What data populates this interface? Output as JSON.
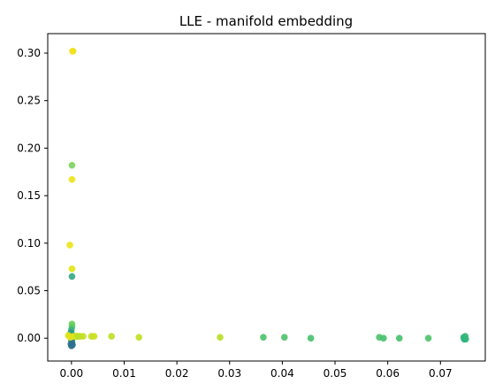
{
  "chart_data": {
    "type": "scatter",
    "title": "LLE - manifold embedding",
    "xlabel": "",
    "ylabel": "",
    "xlim": [
      -0.0045,
      0.0785
    ],
    "ylim": [
      -0.024,
      0.3205
    ],
    "x_ticks": [
      0.0,
      0.01,
      0.02,
      0.03,
      0.04,
      0.05,
      0.06,
      0.07
    ],
    "x_tick_labels": [
      "0.00",
      "0.01",
      "0.02",
      "0.03",
      "0.04",
      "0.05",
      "0.06",
      "0.07"
    ],
    "y_ticks": [
      0.0,
      0.05,
      0.1,
      0.15,
      0.2,
      0.25,
      0.3
    ],
    "y_tick_labels": [
      "0.00",
      "0.05",
      "0.10",
      "0.15",
      "0.20",
      "0.25",
      "0.30"
    ],
    "grid": false,
    "legend": false,
    "colormap": "viridis",
    "marker_size": 3.8,
    "points": [
      {
        "x": 0.0002,
        "y": 0.302,
        "color": "#f2e11f"
      },
      {
        "x": 0.0003,
        "y": 0.302,
        "color": "#f2e11f"
      },
      {
        "x": 0.0001,
        "y": 0.182,
        "color": "#7ed25e"
      },
      {
        "x": 0.0001,
        "y": 0.167,
        "color": "#ece51b"
      },
      {
        "x": -0.0003,
        "y": 0.098,
        "color": "#ece51b"
      },
      {
        "x": 0.0001,
        "y": 0.073,
        "color": "#e2e418"
      },
      {
        "x": 0.0001,
        "y": 0.065,
        "color": "#3aa884"
      },
      {
        "x": 0.0001,
        "y": 0.015,
        "color": "#6fcf5a"
      },
      {
        "x": 0.0001,
        "y": 0.012,
        "color": "#5ec962"
      },
      {
        "x": 0.0,
        "y": 0.009,
        "color": "#3cb47c"
      },
      {
        "x": -0.0001,
        "y": 0.006,
        "color": "#2a9d8a"
      },
      {
        "x": 0.0001,
        "y": 0.004,
        "color": "#2a9d8a"
      },
      {
        "x": -0.0002,
        "y": 0.002,
        "color": "#2a9d8a"
      },
      {
        "x": 0.0002,
        "y": 0.0,
        "color": "#2a9d8a"
      },
      {
        "x": 0.0,
        "y": -0.002,
        "color": "#26848e"
      },
      {
        "x": 0.0001,
        "y": -0.004,
        "color": "#26848e"
      },
      {
        "x": -0.0001,
        "y": -0.006,
        "color": "#2e6f8e"
      },
      {
        "x": 0.0002,
        "y": -0.007,
        "color": "#2e6f8e"
      },
      {
        "x": 0.0,
        "y": -0.008,
        "color": "#2e6f8e"
      },
      {
        "x": -0.0006,
        "y": 0.003,
        "color": "#e2e418"
      },
      {
        "x": -0.0004,
        "y": 0.002,
        "color": "#d8e219"
      },
      {
        "x": -0.0002,
        "y": 0.001,
        "color": "#e5e419"
      },
      {
        "x": 0.0004,
        "y": 0.002,
        "color": "#d0e11c"
      },
      {
        "x": 0.0006,
        "y": 0.002,
        "color": "#e9e51a"
      },
      {
        "x": 0.0009,
        "y": 0.002,
        "color": "#c7e020"
      },
      {
        "x": 0.0011,
        "y": 0.002,
        "color": "#d8e219"
      },
      {
        "x": 0.0013,
        "y": 0.002,
        "color": "#b5de2b"
      },
      {
        "x": 0.0016,
        "y": 0.002,
        "color": "#bddf26"
      },
      {
        "x": 0.0022,
        "y": 0.002,
        "color": "#c2df23"
      },
      {
        "x": 0.0038,
        "y": 0.002,
        "color": "#c2df23"
      },
      {
        "x": 0.0043,
        "y": 0.002,
        "color": "#cde11d"
      },
      {
        "x": 0.0076,
        "y": 0.002,
        "color": "#bddf26"
      },
      {
        "x": 0.0128,
        "y": 0.001,
        "color": "#c2df23"
      },
      {
        "x": 0.0282,
        "y": 0.001,
        "color": "#b8de29"
      },
      {
        "x": 0.0364,
        "y": 0.001,
        "color": "#4ec36b"
      },
      {
        "x": 0.0404,
        "y": 0.001,
        "color": "#4ec36b"
      },
      {
        "x": 0.0454,
        "y": 0.0,
        "color": "#48c16e"
      },
      {
        "x": 0.0584,
        "y": 0.001,
        "color": "#4ec36b"
      },
      {
        "x": 0.0592,
        "y": 0.0,
        "color": "#48c16e"
      },
      {
        "x": 0.0622,
        "y": 0.0,
        "color": "#48c16e"
      },
      {
        "x": 0.0677,
        "y": 0.0,
        "color": "#4ec36b"
      },
      {
        "x": 0.0744,
        "y": 0.001,
        "color": "#2db27d"
      },
      {
        "x": 0.0746,
        "y": 0.0,
        "color": "#2db27d"
      },
      {
        "x": 0.0748,
        "y": -0.001,
        "color": "#35b779"
      },
      {
        "x": 0.0745,
        "y": -0.001,
        "color": "#2db27d"
      },
      {
        "x": 0.0747,
        "y": 0.002,
        "color": "#35b779"
      }
    ]
  }
}
